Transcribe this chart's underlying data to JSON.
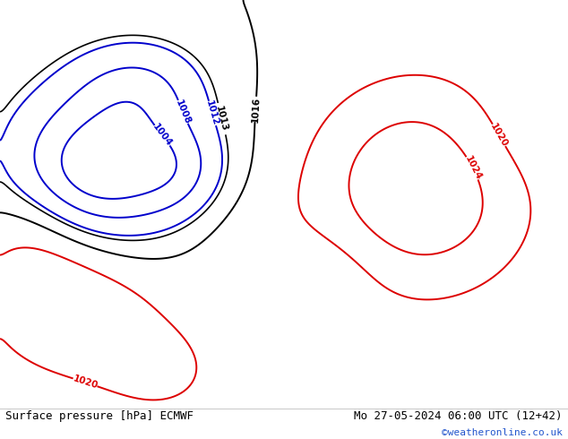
{
  "title_left": "Surface pressure [hPa] ECMWF",
  "title_right": "Mo 27-05-2024 06:00 UTC (12+42)",
  "credit": "©weatheronline.co.uk",
  "bg_color": "#ffffff",
  "land_color_rgb": [
    0.72,
    0.88,
    0.68
  ],
  "sea_color_hex": "#b0d0e8",
  "contour_color_black": "#000000",
  "contour_color_red": "#dd0000",
  "contour_color_blue": "#0000cc",
  "label_fontsize": 7.5,
  "footer_fontsize": 9,
  "credit_fontsize": 8,
  "credit_color": "#2255cc",
  "lon_min": -35,
  "lon_max": 50,
  "lat_min": 24,
  "lat_max": 72
}
